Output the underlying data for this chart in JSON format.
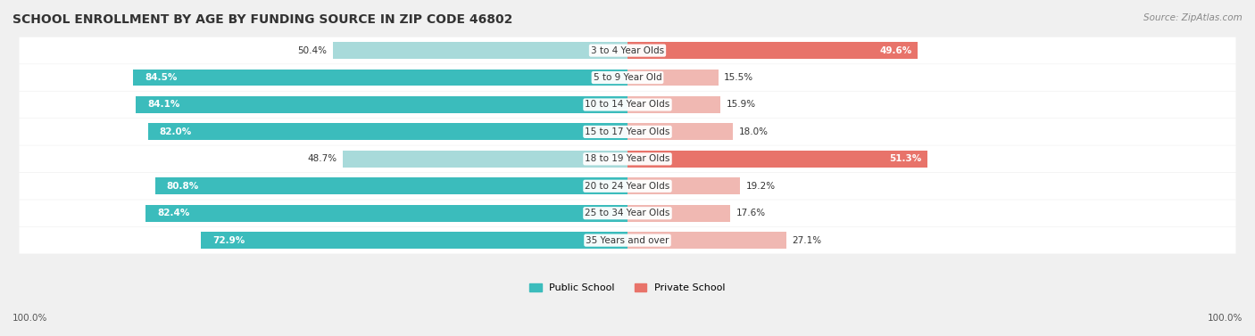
{
  "title": "SCHOOL ENROLLMENT BY AGE BY FUNDING SOURCE IN ZIP CODE 46802",
  "source": "Source: ZipAtlas.com",
  "categories": [
    "3 to 4 Year Olds",
    "5 to 9 Year Old",
    "10 to 14 Year Olds",
    "15 to 17 Year Olds",
    "18 to 19 Year Olds",
    "20 to 24 Year Olds",
    "25 to 34 Year Olds",
    "35 Years and over"
  ],
  "public_values": [
    50.4,
    84.5,
    84.1,
    82.0,
    48.7,
    80.8,
    82.4,
    72.9
  ],
  "private_values": [
    49.6,
    15.5,
    15.9,
    18.0,
    51.3,
    19.2,
    17.6,
    27.1
  ],
  "public_color_strong": "#3bbcbc",
  "public_color_light": "#a8dada",
  "private_color_strong": "#e8736a",
  "private_color_light": "#f0b8b2",
  "bg_color": "#f0f0f0",
  "bar_bg": "#ffffff",
  "legend_public": "Public School",
  "legend_private": "Private School",
  "axis_label_left": "100.0%",
  "axis_label_right": "100.0%"
}
